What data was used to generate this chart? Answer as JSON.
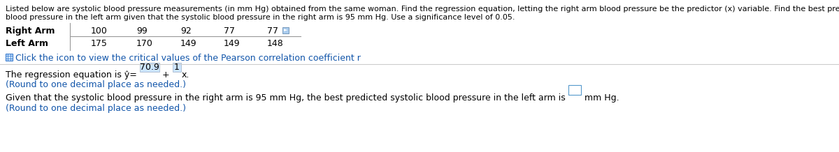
{
  "desc_line1": "Listed below are systolic blood pressure measurements (in mm Hg) obtained from the same woman. Find the regression equation, letting the right arm blood pressure be the predictor (x) variable. Find the best predicted systolic",
  "desc_line2": "blood pressure in the left arm given that the systolic blood pressure in the right arm is 95 mm Hg. Use a significance level of 0.05.",
  "row1_label": "Right Arm",
  "row2_label": "Left Arm",
  "row1_values": [
    "100",
    "99",
    "92",
    "77",
    "77"
  ],
  "row2_values": [
    "175",
    "170",
    "149",
    "149",
    "148"
  ],
  "click_text": "Click the icon to view the critical values of the Pearson correlation coefficient r",
  "reg_pre": "The regression equation is ŷ= ",
  "reg_val1": "70.9",
  "reg_mid": " + ",
  "reg_val2": "1",
  "reg_post": "x.",
  "round_note1": "(Round to one decimal place as needed.)",
  "given_pre": "Given that the systolic blood pressure in the right arm is 95 mm Hg, the best predicted systolic blood pressure in the left arm is ",
  "given_post": " mm Hg.",
  "round_note2": "(Round to one decimal place as needed.)",
  "highlight_bg": "#cce5ff",
  "answer_box_color": "#5599cc",
  "text_color": "#000000",
  "blue_color": "#1155aa",
  "icon_blue": "#3377cc",
  "sep_color": "#cccccc",
  "bg_color": "#ffffff",
  "fs_desc": 8.0,
  "fs_table": 9.0,
  "fs_body": 9.0,
  "fig_w": 12.0,
  "fig_h": 2.18,
  "dpi": 100
}
